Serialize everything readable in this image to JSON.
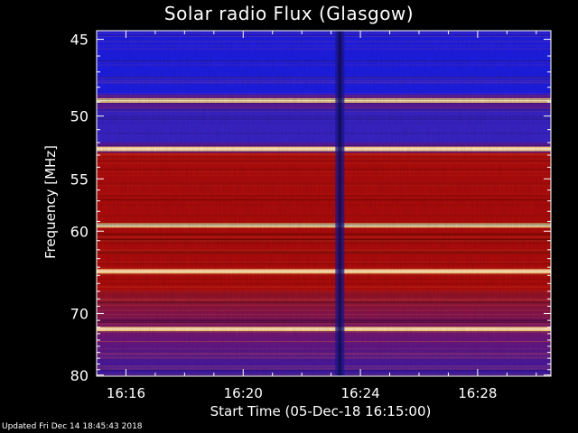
{
  "chart_data": {
    "type": "heatmap",
    "title": "Solar radio Flux (Glasgow)",
    "xlabel": "Start Time (05-Dec-18 16:15:00)",
    "ylabel": "Frequency [MHz]",
    "x_unit": "minutes of the hour 16",
    "xlim": [
      15.0,
      30.5
    ],
    "ylim": [
      44.5,
      80.2
    ],
    "x_ticks": [
      {
        "label": "16:16",
        "value": 16
      },
      {
        "label": "16:20",
        "value": 20
      },
      {
        "label": "16:24",
        "value": 24
      },
      {
        "label": "16:28",
        "value": 28
      }
    ],
    "y_ticks": [
      45,
      50,
      55,
      60,
      70,
      80
    ],
    "y_scale": "reciprocal",
    "colors": {
      "background": "#000000",
      "low": "#1e1ee6",
      "mid": "#b00c0c",
      "high": "#ffd080",
      "axis": "#ffffff"
    },
    "frequency_regions": [
      {
        "from": 44.5,
        "to": 48.5,
        "level": "low"
      },
      {
        "from": 49.5,
        "to": 52.0,
        "level": "low-mid"
      },
      {
        "from": 52.8,
        "to": 67.0,
        "level": "mid"
      },
      {
        "from": 67.0,
        "to": 80.2,
        "level": "mid-low"
      }
    ],
    "bright_lines_mhz": [
      48.9,
      52.5,
      59.4,
      64.5,
      72.3
    ],
    "dark_vertical_stripe_time": 23.3,
    "footer": "Updated Fri Dec 14 18:45:43 2018"
  }
}
